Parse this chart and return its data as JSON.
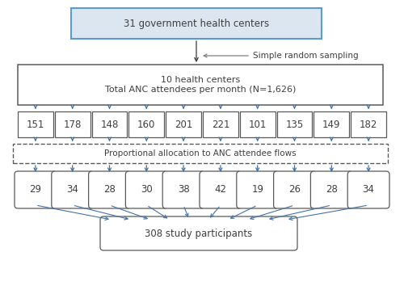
{
  "box1_text": "31 government health centers",
  "box2_text": "10 health centers\nTotal ANC attendees per month (N=1,626)",
  "box3_label": "Proportional allocation to ANC attendee flows",
  "box4_text": "308 study participants",
  "row1_values": [
    "151",
    "178",
    "148",
    "160",
    "201",
    "221",
    "101",
    "135",
    "149",
    "182"
  ],
  "row2_values": [
    "29",
    "34",
    "28",
    "30",
    "38",
    "42",
    "19",
    "26",
    "28",
    "34"
  ],
  "annotation_text": "Simple random sampling",
  "bg_color": "#ffffff",
  "box1_edge_color": "#5b9bd5",
  "box1_fill_color": "#dce6f1",
  "box2_edge_color": "#595959",
  "box2_fill_color": "#ffffff",
  "small_box_edge_color": "#595959",
  "small_box_fill_color": "#ffffff",
  "dashed_box_edge_color": "#595959",
  "dashed_box_fill_color": "#ffffff",
  "arrow_color": "#4472a8",
  "arrow_color_gray": "#808080",
  "text_color": "#3f3f3f",
  "font_size": 7.5,
  "small_font_size": 8.5
}
